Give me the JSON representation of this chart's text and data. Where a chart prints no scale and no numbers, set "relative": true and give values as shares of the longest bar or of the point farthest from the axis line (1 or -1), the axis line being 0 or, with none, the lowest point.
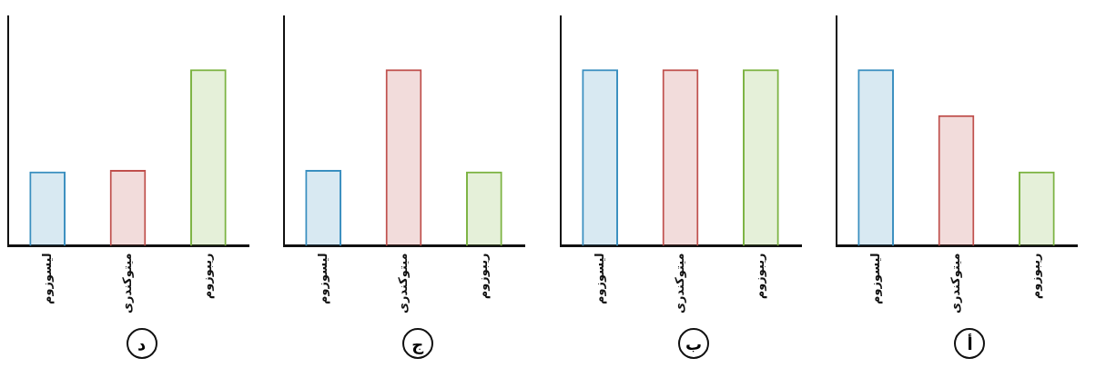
{
  "chart_data": [
    {
      "type": "bar",
      "title": "أ",
      "relative": true,
      "categories": [
        "لیسوزوم",
        "میتوکندری",
        "ریبوزوم"
      ],
      "values": [
        1,
        0.74,
        0.42
      ],
      "colors": [
        "#3a8fc0",
        "#c0504d",
        "#7cb342"
      ],
      "grid": false,
      "legend": false
    },
    {
      "type": "bar",
      "title": "ب",
      "relative": true,
      "categories": [
        "لیسوزوم",
        "میتوکندری",
        "ریبوزوم"
      ],
      "values": [
        1,
        1,
        1
      ],
      "colors": [
        "#3a8fc0",
        "#c0504d",
        "#7cb342"
      ],
      "grid": false,
      "legend": false
    },
    {
      "type": "bar",
      "title": "ج",
      "relative": true,
      "categories": [
        "لیسوزوم",
        "میتوکندری",
        "ریبوزوم"
      ],
      "values": [
        0.43,
        1,
        0.42
      ],
      "colors": [
        "#3a8fc0",
        "#c0504d",
        "#7cb342"
      ],
      "grid": false,
      "legend": false
    },
    {
      "type": "bar",
      "title": "د",
      "relative": true,
      "categories": [
        "لیسوزوم",
        "میتوکندری",
        "ریبوزوم"
      ],
      "values": [
        0.42,
        0.43,
        1
      ],
      "colors": [
        "#3a8fc0",
        "#c0504d",
        "#7cb342"
      ],
      "grid": false,
      "legend": false
    }
  ]
}
